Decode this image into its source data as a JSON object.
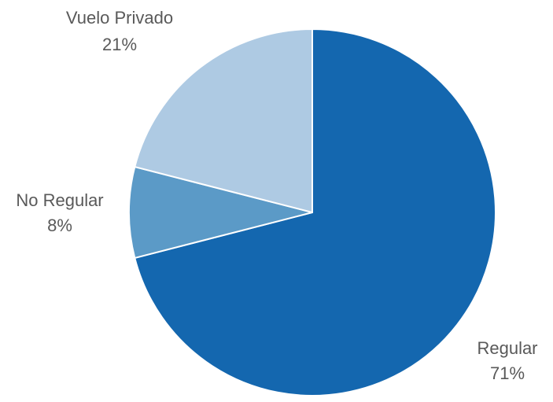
{
  "chart_data": {
    "type": "pie",
    "title": "",
    "slices": [
      {
        "label": "Regular",
        "value": 71,
        "value_label": "71%",
        "color": "#1467AF"
      },
      {
        "label": "No Regular",
        "value": 8,
        "value_label": "8%",
        "color": "#5B9AC7"
      },
      {
        "label": "Vuelo Privado",
        "value": 21,
        "value_label": "21%",
        "color": "#AECAE3"
      }
    ],
    "start": "12 o'clock",
    "direction": "clockwise",
    "slice_border_color": "#ffffff",
    "label_color": "#595959",
    "legend": "none"
  }
}
